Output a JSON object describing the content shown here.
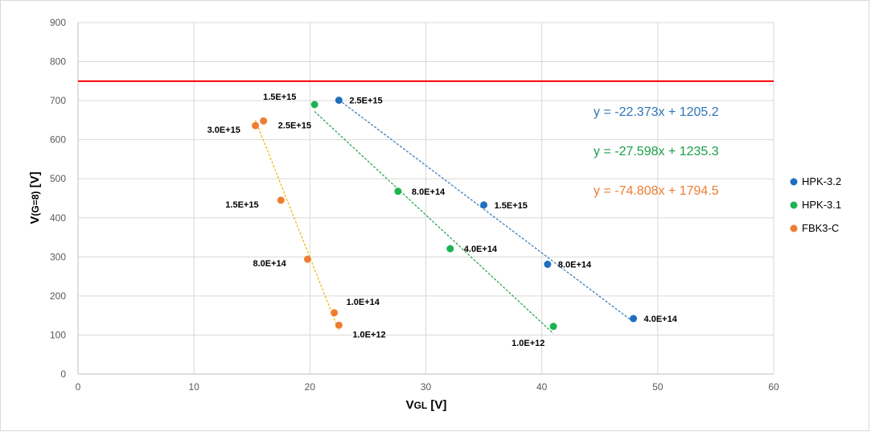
{
  "chart_data": {
    "type": "scatter",
    "title": "",
    "xlabel": "VGL [V]",
    "ylabel": "V(G=8) [V]",
    "xlim": [
      0,
      60
    ],
    "ylim": [
      0,
      900
    ],
    "x_ticks": [
      0,
      10,
      20,
      30,
      40,
      50,
      60
    ],
    "y_ticks": [
      0,
      100,
      200,
      300,
      400,
      500,
      600,
      700,
      800,
      900
    ],
    "grid": true,
    "legend_position": "right",
    "reference_line": {
      "y": 750,
      "color": "#ff0000"
    },
    "series": [
      {
        "name": "HPK-3.2",
        "color": "#1f6fc0",
        "points": [
          {
            "x": 22.5,
            "y": 701,
            "label": "2.5E+15"
          },
          {
            "x": 35.0,
            "y": 433,
            "label": "1.5E+15"
          },
          {
            "x": 40.5,
            "y": 281,
            "label": "8.0E+14"
          },
          {
            "x": 47.9,
            "y": 142,
            "label": "4.0E+14"
          }
        ],
        "trendline": {
          "slope": -22.373,
          "intercept": 1205.2,
          "x_range": [
            22.5,
            47.9
          ],
          "color": "#2e75b6"
        },
        "equation": "y = -22.373x + 1205.2"
      },
      {
        "name": "HPK-3.1",
        "color": "#1fb254",
        "points": [
          {
            "x": 20.4,
            "y": 690,
            "label": "1.5E+15"
          },
          {
            "x": 27.6,
            "y": 468,
            "label": "8.0E+14"
          },
          {
            "x": 32.1,
            "y": 321,
            "label": "4.0E+14"
          },
          {
            "x": 41.0,
            "y": 122,
            "label": "1.0E+12"
          }
        ],
        "trendline": {
          "slope": -27.598,
          "intercept": 1235.3,
          "x_range": [
            20.4,
            41.0
          ],
          "color": "#1a9e47"
        },
        "equation": "y = -27.598x + 1235.3"
      },
      {
        "name": "FBK3-C",
        "color": "#ed7d31",
        "points": [
          {
            "x": 15.3,
            "y": 636,
            "label": "3.0E+15"
          },
          {
            "x": 16.0,
            "y": 648,
            "label": "2.5E+15"
          },
          {
            "x": 17.5,
            "y": 445,
            "label": "1.5E+15"
          },
          {
            "x": 19.8,
            "y": 294,
            "label": "8.0E+14"
          },
          {
            "x": 22.1,
            "y": 157,
            "label": "1.0E+14"
          },
          {
            "x": 22.5,
            "y": 125,
            "label": "1.0E+12"
          }
        ],
        "trendline": {
          "slope": -74.808,
          "intercept": 1794.5,
          "x_range": [
            15.3,
            22.5
          ],
          "color": "#f0b400"
        },
        "equation": "y = -74.808x + 1794.5"
      }
    ]
  }
}
